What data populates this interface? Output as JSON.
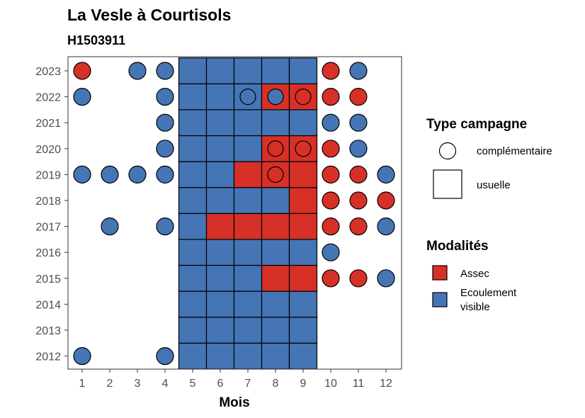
{
  "header": {
    "title": "La Vesle à Courtisols",
    "subtitle": "H1503911"
  },
  "chart_data": {
    "type": "heatmap",
    "title": "La Vesle à Courtisols",
    "subtitle": "H1503911",
    "xlabel": "Mois",
    "ylabel": "",
    "x_ticks": [
      "1",
      "2",
      "3",
      "4",
      "5",
      "6",
      "7",
      "8",
      "9",
      "10",
      "11",
      "12"
    ],
    "y_ticks": [
      "2012",
      "2013",
      "2014",
      "2015",
      "2016",
      "2017",
      "2018",
      "2019",
      "2020",
      "2021",
      "2022",
      "2023"
    ],
    "colors": {
      "Assec": "#d73027",
      "Ecoulement visible": "#4575b4"
    },
    "usuelle_months": [
      5,
      6,
      7,
      8,
      9
    ],
    "usuelle": {
      "2023": [
        "E",
        "E",
        "E",
        "E",
        "E"
      ],
      "2022": [
        "E",
        "E",
        "E",
        "A",
        "A"
      ],
      "2021": [
        "E",
        "E",
        "E",
        "E",
        "E"
      ],
      "2020": [
        "E",
        "E",
        "E",
        "A",
        "A"
      ],
      "2019": [
        "E",
        "E",
        "A",
        "A",
        "A"
      ],
      "2018": [
        "E",
        "E",
        "E",
        "E",
        "A"
      ],
      "2017": [
        "E",
        "A",
        "A",
        "A",
        "A"
      ],
      "2016": [
        "E",
        "E",
        "E",
        "E",
        "E"
      ],
      "2015": [
        "E",
        "E",
        "E",
        "A",
        "A"
      ],
      "2014": [
        "E",
        "E",
        "E",
        "E",
        "E"
      ],
      "2013": [
        "E",
        "E",
        "E",
        "E",
        "E"
      ],
      "2012": [
        "E",
        "E",
        "E",
        "E",
        "E"
      ]
    },
    "complementaire": [
      {
        "year": "2023",
        "month": 1,
        "value": "A"
      },
      {
        "year": "2023",
        "month": 3,
        "value": "E"
      },
      {
        "year": "2023",
        "month": 4,
        "value": "E"
      },
      {
        "year": "2023",
        "month": 10,
        "value": "A"
      },
      {
        "year": "2023",
        "month": 11,
        "value": "E"
      },
      {
        "year": "2022",
        "month": 1,
        "value": "E"
      },
      {
        "year": "2022",
        "month": 4,
        "value": "E"
      },
      {
        "year": "2022",
        "month": 7,
        "value": "E"
      },
      {
        "year": "2022",
        "month": 8,
        "value": "E"
      },
      {
        "year": "2022",
        "month": 9,
        "value": "A"
      },
      {
        "year": "2022",
        "month": 10,
        "value": "A"
      },
      {
        "year": "2022",
        "month": 11,
        "value": "A"
      },
      {
        "year": "2021",
        "month": 4,
        "value": "E"
      },
      {
        "year": "2021",
        "month": 10,
        "value": "E"
      },
      {
        "year": "2021",
        "month": 11,
        "value": "E"
      },
      {
        "year": "2020",
        "month": 4,
        "value": "E"
      },
      {
        "year": "2020",
        "month": 8,
        "value": "A"
      },
      {
        "year": "2020",
        "month": 9,
        "value": "A"
      },
      {
        "year": "2020",
        "month": 10,
        "value": "A"
      },
      {
        "year": "2020",
        "month": 11,
        "value": "E"
      },
      {
        "year": "2019",
        "month": 1,
        "value": "E"
      },
      {
        "year": "2019",
        "month": 2,
        "value": "E"
      },
      {
        "year": "2019",
        "month": 3,
        "value": "E"
      },
      {
        "year": "2019",
        "month": 4,
        "value": "E"
      },
      {
        "year": "2019",
        "month": 8,
        "value": "A"
      },
      {
        "year": "2019",
        "month": 10,
        "value": "A"
      },
      {
        "year": "2019",
        "month": 11,
        "value": "A"
      },
      {
        "year": "2019",
        "month": 12,
        "value": "E"
      },
      {
        "year": "2018",
        "month": 10,
        "value": "A"
      },
      {
        "year": "2018",
        "month": 11,
        "value": "A"
      },
      {
        "year": "2018",
        "month": 12,
        "value": "A"
      },
      {
        "year": "2017",
        "month": 2,
        "value": "E"
      },
      {
        "year": "2017",
        "month": 4,
        "value": "E"
      },
      {
        "year": "2017",
        "month": 10,
        "value": "A"
      },
      {
        "year": "2017",
        "month": 11,
        "value": "A"
      },
      {
        "year": "2017",
        "month": 12,
        "value": "E"
      },
      {
        "year": "2016",
        "month": 10,
        "value": "E"
      },
      {
        "year": "2015",
        "month": 10,
        "value": "A"
      },
      {
        "year": "2015",
        "month": 11,
        "value": "A"
      },
      {
        "year": "2015",
        "month": 12,
        "value": "E"
      },
      {
        "year": "2012",
        "month": 1,
        "value": "E"
      },
      {
        "year": "2012",
        "month": 4,
        "value": "E"
      }
    ]
  },
  "legend": {
    "type_title": "Type campagne",
    "type_items": [
      "complémentaire",
      "usuelle"
    ],
    "mod_title": "Modalités",
    "mod_items": [
      {
        "lines": [
          "Assec"
        ],
        "color": "#d73027"
      },
      {
        "lines": [
          "Ecoulement",
          "visible"
        ],
        "color": "#4575b4"
      }
    ]
  }
}
